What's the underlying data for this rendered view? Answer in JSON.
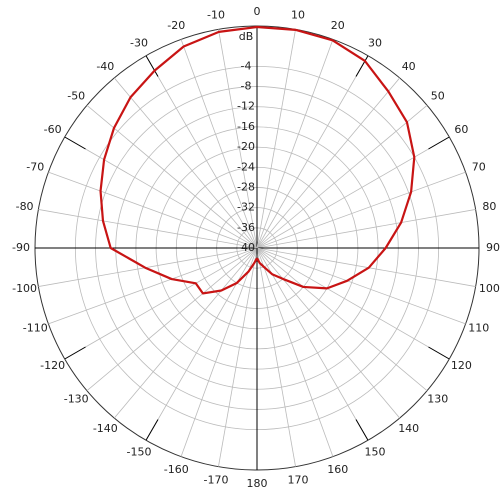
{
  "chart_data": {
    "type": "polar",
    "r_unit": "dB",
    "rlim": [
      -40,
      4
    ],
    "rticks": [
      -40,
      -36,
      -32,
      -28,
      -24,
      -20,
      -16,
      -12,
      -8,
      -4
    ],
    "thetaticks": [
      -170,
      -160,
      -150,
      -140,
      -130,
      -120,
      -110,
      -100,
      -90,
      -80,
      -70,
      -60,
      -50,
      -40,
      -30,
      -20,
      -10,
      0,
      10,
      20,
      30,
      40,
      50,
      60,
      70,
      80,
      90,
      100,
      110,
      120,
      130,
      140,
      150,
      160,
      170,
      180
    ],
    "grid": true,
    "series": [
      {
        "color": "#c81414",
        "x": [
          -180,
          -170,
          -160,
          -150,
          -140,
          -130,
          -120,
          -110,
          -100,
          -90,
          -80,
          -70,
          -60,
          -50,
          -40,
          -30,
          -20,
          -10,
          0,
          10,
          20,
          30,
          40,
          50,
          60,
          70,
          80,
          90,
          100,
          110,
          120,
          130,
          140,
          150,
          160,
          170,
          180
        ],
        "values": [
          -38,
          -37,
          -35,
          -32,
          -29,
          -26,
          -26,
          -22,
          -17.5,
          -11,
          -9,
          -7,
          -5,
          -3,
          -1,
          0.6,
          2.5,
          3.5,
          3.8,
          3.9,
          3.8,
          2.8,
          0.5,
          -1.2,
          -4,
          -7.5,
          -11,
          -14.5,
          -17.5,
          -21,
          -24,
          -28,
          -32,
          -34,
          -36,
          -37,
          -38
        ]
      }
    ]
  }
}
